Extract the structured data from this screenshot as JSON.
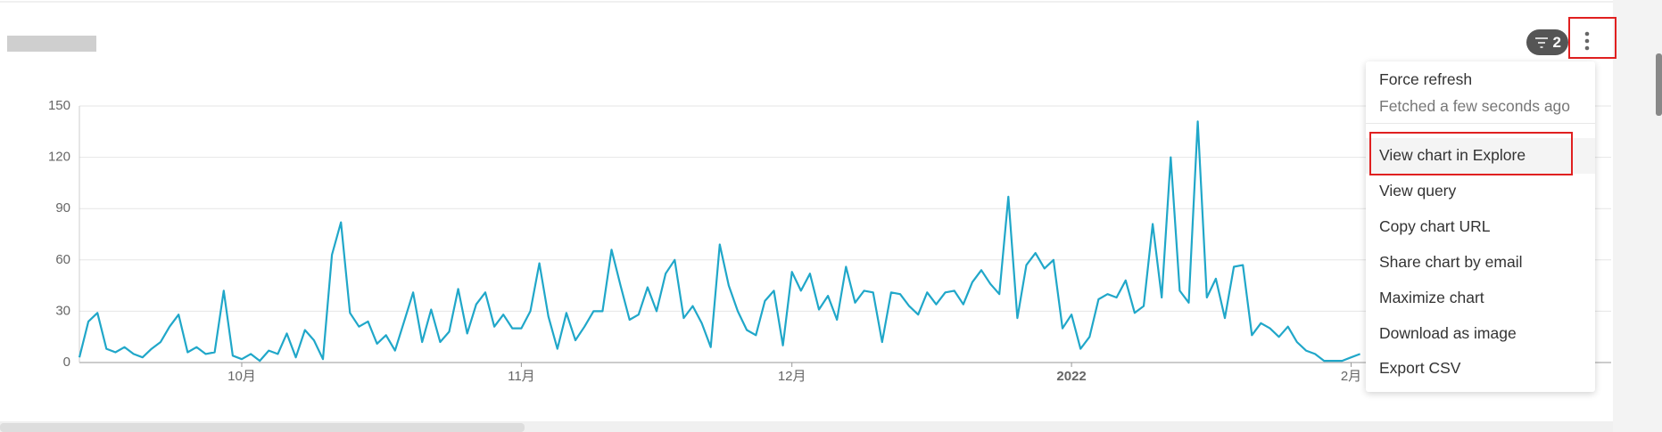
{
  "chart_data": {
    "type": "line",
    "color": "#20a7c9",
    "grid": true,
    "ylim": [
      0,
      150
    ],
    "yticks": [
      0,
      30,
      60,
      90,
      120,
      150
    ],
    "categories": [
      null,
      null,
      null,
      null,
      null,
      null,
      null,
      null,
      null,
      null,
      null,
      null,
      null,
      null,
      null,
      null,
      null,
      null,
      "10月",
      null,
      null,
      null,
      null,
      null,
      null,
      null,
      null,
      null,
      null,
      null,
      null,
      null,
      null,
      null,
      null,
      null,
      null,
      null,
      null,
      null,
      null,
      null,
      null,
      null,
      null,
      null,
      null,
      null,
      null,
      "11月",
      null,
      null,
      null,
      null,
      null,
      null,
      null,
      null,
      null,
      null,
      null,
      null,
      null,
      null,
      null,
      null,
      null,
      null,
      null,
      null,
      null,
      null,
      null,
      null,
      null,
      null,
      null,
      null,
      null,
      "12月",
      null,
      null,
      null,
      null,
      null,
      null,
      null,
      null,
      null,
      null,
      null,
      null,
      null,
      null,
      null,
      null,
      null,
      null,
      null,
      null,
      null,
      null,
      null,
      null,
      null,
      null,
      null,
      null,
      null,
      null,
      "2022",
      null,
      null,
      null,
      null,
      null,
      null,
      null,
      null,
      null,
      null,
      null,
      null,
      null,
      null,
      null,
      null,
      null,
      null,
      null,
      null,
      null,
      null,
      null,
      null,
      null,
      null,
      null,
      null,
      null,
      null,
      "2月",
      null
    ],
    "values": [
      3,
      24,
      29,
      8,
      6,
      9,
      5,
      3,
      8,
      12,
      21,
      28,
      6,
      9,
      5,
      6,
      42,
      4,
      2,
      5,
      1,
      7,
      5,
      17,
      3,
      19,
      13,
      2,
      63,
      82,
      29,
      21,
      24,
      11,
      16,
      7,
      24,
      41,
      12,
      31,
      12,
      18,
      43,
      17,
      34,
      41,
      21,
      28,
      20,
      20,
      30,
      58,
      27,
      8,
      29,
      13,
      21,
      30,
      30,
      66,
      45,
      25,
      28,
      44,
      30,
      52,
      60,
      26,
      33,
      23,
      9,
      69,
      45,
      30,
      19,
      16,
      36,
      42,
      10,
      53,
      42,
      52,
      31,
      39,
      25,
      56,
      35,
      42,
      41,
      12,
      41,
      40,
      33,
      28,
      41,
      34,
      41,
      42,
      34,
      47,
      54,
      46,
      40,
      97,
      26,
      57,
      64,
      55,
      60,
      20,
      28,
      8,
      15,
      37,
      40,
      38,
      48,
      29,
      33,
      81,
      38,
      120,
      42,
      35,
      141,
      38,
      49,
      26,
      56,
      57,
      16,
      23,
      20,
      15,
      21,
      12,
      7,
      5,
      1,
      1,
      1,
      3,
      5
    ]
  },
  "filter_badge": "2",
  "menu": {
    "items": [
      "Force refresh",
      "Fetched a few seconds ago",
      "View chart in Explore",
      "View query",
      "Copy chart URL",
      "Share chart by email",
      "Maximize chart",
      "Download as image",
      "Export CSV"
    ]
  }
}
